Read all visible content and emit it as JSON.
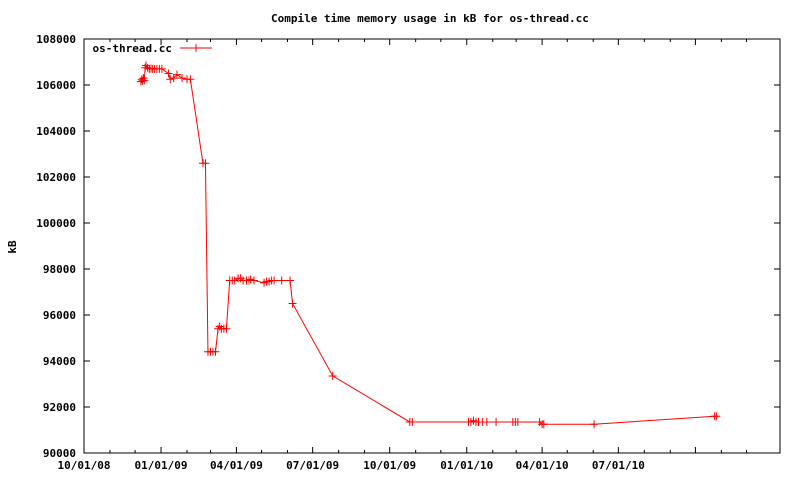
{
  "chart_data": {
    "type": "line",
    "title": "Compile time memory usage in kB for os-thread.cc",
    "xlabel": "",
    "ylabel": "kB",
    "ylim": [
      90000,
      108000
    ],
    "xlim": [
      "2008-10-01",
      "2011-01-10"
    ],
    "yticks": [
      "90000",
      "92000",
      "94000",
      "96000",
      "98000",
      "100000",
      "102000",
      "104000",
      "106000",
      "108000"
    ],
    "xticks": [
      {
        "label": "10/01/08",
        "date": "2008-10-01"
      },
      {
        "label": "01/01/09",
        "date": "2009-01-01"
      },
      {
        "label": "04/01/09",
        "date": "2009-04-01"
      },
      {
        "label": "07/01/09",
        "date": "2009-07-01"
      },
      {
        "label": "10/01/09",
        "date": "2009-10-01"
      },
      {
        "label": "01/01/10",
        "date": "2010-01-01"
      },
      {
        "label": "04/01/10",
        "date": "2010-04-01"
      },
      {
        "label": "07/01/10",
        "date": "2010-07-01"
      },
      {
        "label": "",
        "date": "2010-10-01"
      }
    ],
    "minor_xticks": [
      "2008-11-01",
      "2008-12-01",
      "2009-02-01",
      "2009-03-01",
      "2009-05-01",
      "2009-06-01",
      "2009-08-01",
      "2009-09-01",
      "2009-11-01",
      "2009-12-01",
      "2010-02-01",
      "2010-03-01",
      "2010-05-01",
      "2010-06-01",
      "2010-08-01",
      "2010-09-01",
      "2010-11-01",
      "2010-12-01"
    ],
    "grid": false,
    "legend_position": "top-left",
    "series_color": "#ff0000",
    "series": [
      {
        "name": "os-thread.cc",
        "points": [
          [
            "2008-12-08",
            106150
          ],
          [
            "2008-12-09",
            106250
          ],
          [
            "2008-12-10",
            106180
          ],
          [
            "2008-12-11",
            106300
          ],
          [
            "2008-12-12",
            106200
          ],
          [
            "2008-12-13",
            106750
          ],
          [
            "2008-12-14",
            106850
          ],
          [
            "2008-12-16",
            106750
          ],
          [
            "2008-12-18",
            106700
          ],
          [
            "2008-12-20",
            106720
          ],
          [
            "2008-12-22",
            106700
          ],
          [
            "2008-12-24",
            106700
          ],
          [
            "2008-12-27",
            106700
          ],
          [
            "2008-12-30",
            106700
          ],
          [
            "2009-01-02",
            106700
          ],
          [
            "2009-01-10",
            106500
          ],
          [
            "2009-01-12",
            106250
          ],
          [
            "2009-01-16",
            106300
          ],
          [
            "2009-01-20",
            106450
          ],
          [
            "2009-01-26",
            106300
          ],
          [
            "2009-02-01",
            106250
          ],
          [
            "2009-02-05",
            106250
          ],
          [
            "2009-02-20",
            102600
          ],
          [
            "2009-02-23",
            102600
          ],
          [
            "2009-02-26",
            94400
          ],
          [
            "2009-03-01",
            94400
          ],
          [
            "2009-03-04",
            94400
          ],
          [
            "2009-03-07",
            94400
          ],
          [
            "2009-03-10",
            95400
          ],
          [
            "2009-03-12",
            95500
          ],
          [
            "2009-03-14",
            95400
          ],
          [
            "2009-03-17",
            95400
          ],
          [
            "2009-03-20",
            95400
          ],
          [
            "2009-03-24",
            97500
          ],
          [
            "2009-03-27",
            97500
          ],
          [
            "2009-03-30",
            97500
          ],
          [
            "2009-04-03",
            97600
          ],
          [
            "2009-04-06",
            97600
          ],
          [
            "2009-04-09",
            97500
          ],
          [
            "2009-04-13",
            97500
          ],
          [
            "2009-04-16",
            97500
          ],
          [
            "2009-04-18",
            97550
          ],
          [
            "2009-04-22",
            97500
          ],
          [
            "2009-05-04",
            97400
          ],
          [
            "2009-05-07",
            97450
          ],
          [
            "2009-05-10",
            97450
          ],
          [
            "2009-05-13",
            97500
          ],
          [
            "2009-05-16",
            97500
          ],
          [
            "2009-05-25",
            97500
          ],
          [
            "2009-06-04",
            97500
          ],
          [
            "2009-06-07",
            96500
          ],
          [
            "2009-07-25",
            93350
          ],
          [
            "2009-10-25",
            91350
          ],
          [
            "2009-10-28",
            91350
          ],
          [
            "2010-01-03",
            91350
          ],
          [
            "2010-01-06",
            91350
          ],
          [
            "2010-01-09",
            91400
          ],
          [
            "2010-01-12",
            91350
          ],
          [
            "2010-01-15",
            91350
          ],
          [
            "2010-01-20",
            91350
          ],
          [
            "2010-01-25",
            91350
          ],
          [
            "2010-02-05",
            91350
          ],
          [
            "2010-02-25",
            91350
          ],
          [
            "2010-02-28",
            91350
          ],
          [
            "2010-03-03",
            91350
          ],
          [
            "2010-03-29",
            91350
          ],
          [
            "2010-04-01",
            91250
          ],
          [
            "2010-04-03",
            91250
          ],
          [
            "2010-06-02",
            91250
          ],
          [
            "2010-10-24",
            91600
          ],
          [
            "2010-10-26",
            91600
          ]
        ]
      }
    ]
  }
}
